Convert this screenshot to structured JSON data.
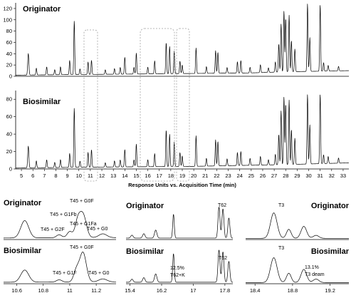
{
  "chart_data": [
    {
      "type": "line",
      "title": "Originator",
      "xlabel": "",
      "ylabel": "",
      "xlim": [
        4.5,
        33.5
      ],
      "ylim": [
        0,
        130
      ],
      "yticks": [
        0,
        20,
        40,
        60,
        80,
        100,
        120
      ],
      "baseline": [
        [
          4.5,
          2
        ],
        [
          9,
          3
        ],
        [
          15,
          4
        ],
        [
          20,
          5
        ],
        [
          25,
          6
        ],
        [
          28,
          8
        ],
        [
          31,
          9
        ],
        [
          33.5,
          10
        ]
      ],
      "peaks": [
        [
          5.6,
          38,
          0.05
        ],
        [
          6.3,
          12,
          0.04
        ],
        [
          7.2,
          14,
          0.04
        ],
        [
          7.9,
          9,
          0.04
        ],
        [
          8.4,
          14,
          0.04
        ],
        [
          9.2,
          25,
          0.04
        ],
        [
          9.6,
          95,
          0.04
        ],
        [
          10.1,
          10,
          0.04
        ],
        [
          10.8,
          22,
          0.04
        ],
        [
          11.1,
          25,
          0.04
        ],
        [
          12.3,
          8,
          0.04
        ],
        [
          13.1,
          10,
          0.04
        ],
        [
          13.6,
          12,
          0.04
        ],
        [
          14.0,
          30,
          0.04
        ],
        [
          14.8,
          12,
          0.04
        ],
        [
          15.0,
          37,
          0.04
        ],
        [
          16.0,
          12,
          0.04
        ],
        [
          16.6,
          23,
          0.04
        ],
        [
          17.6,
          55,
          0.04
        ],
        [
          17.9,
          48,
          0.04
        ],
        [
          18.3,
          40,
          0.04
        ],
        [
          18.8,
          22,
          0.04
        ],
        [
          19.0,
          15,
          0.04
        ],
        [
          20.2,
          45,
          0.04
        ],
        [
          21.1,
          12,
          0.04
        ],
        [
          21.9,
          40,
          0.04
        ],
        [
          22.1,
          37,
          0.04
        ],
        [
          22.9,
          10,
          0.04
        ],
        [
          23.8,
          20,
          0.04
        ],
        [
          24.1,
          22,
          0.04
        ],
        [
          24.9,
          10,
          0.04
        ],
        [
          25.8,
          14,
          0.04
        ],
        [
          26.5,
          8,
          0.04
        ],
        [
          27.1,
          18,
          0.04
        ],
        [
          27.4,
          50,
          0.04
        ],
        [
          27.6,
          85,
          0.04
        ],
        [
          27.85,
          108,
          0.04
        ],
        [
          28.0,
          95,
          0.04
        ],
        [
          28.3,
          100,
          0.04
        ],
        [
          28.5,
          55,
          0.04
        ],
        [
          28.8,
          40,
          0.04
        ],
        [
          29.9,
          120,
          0.04
        ],
        [
          30.1,
          60,
          0.04
        ],
        [
          31.0,
          118,
          0.04
        ],
        [
          31.3,
          15,
          0.04
        ],
        [
          31.7,
          10,
          0.04
        ],
        [
          32.6,
          8,
          0.04
        ]
      ]
    },
    {
      "type": "line",
      "title": "Biosimilar",
      "xlabel": "Response Units vs. Acquisition Time (min)",
      "ylabel": "",
      "xlim": [
        4.5,
        33.5
      ],
      "ylim": [
        0,
        90
      ],
      "yticks": [
        0,
        20,
        40,
        60,
        80
      ],
      "xticks": [
        5,
        6,
        7,
        8,
        9,
        10,
        11,
        12,
        13,
        14,
        15,
        16,
        17,
        18,
        19,
        20,
        21,
        22,
        23,
        24,
        25,
        26,
        27,
        28,
        29,
        30,
        31,
        32,
        33
      ],
      "baseline": [
        [
          4.5,
          1
        ],
        [
          10,
          2
        ],
        [
          20,
          3
        ],
        [
          28,
          5
        ],
        [
          33.5,
          7
        ]
      ],
      "peaks": [
        [
          5.6,
          25,
          0.05
        ],
        [
          6.3,
          8,
          0.04
        ],
        [
          7.2,
          9,
          0.04
        ],
        [
          7.9,
          6,
          0.04
        ],
        [
          8.4,
          9,
          0.04
        ],
        [
          9.2,
          16,
          0.04
        ],
        [
          9.6,
          68,
          0.04
        ],
        [
          10.1,
          7,
          0.04
        ],
        [
          10.8,
          17,
          0.04
        ],
        [
          11.1,
          20,
          0.04
        ],
        [
          12.3,
          5,
          0.04
        ],
        [
          13.1,
          7,
          0.04
        ],
        [
          13.6,
          8,
          0.04
        ],
        [
          14.0,
          20,
          0.04
        ],
        [
          14.8,
          8,
          0.04
        ],
        [
          15.0,
          26,
          0.04
        ],
        [
          16.0,
          8,
          0.04
        ],
        [
          16.6,
          15,
          0.04
        ],
        [
          17.6,
          42,
          0.04
        ],
        [
          17.9,
          37,
          0.04
        ],
        [
          18.3,
          28,
          0.04
        ],
        [
          18.8,
          16,
          0.04
        ],
        [
          19.0,
          12,
          0.04
        ],
        [
          20.2,
          35,
          0.04
        ],
        [
          21.1,
          9,
          0.04
        ],
        [
          21.9,
          30,
          0.04
        ],
        [
          22.1,
          28,
          0.04
        ],
        [
          22.9,
          8,
          0.04
        ],
        [
          23.8,
          15,
          0.04
        ],
        [
          24.1,
          16,
          0.04
        ],
        [
          24.9,
          8,
          0.04
        ],
        [
          25.8,
          10,
          0.04
        ],
        [
          26.5,
          6,
          0.04
        ],
        [
          27.1,
          12,
          0.04
        ],
        [
          27.4,
          35,
          0.04
        ],
        [
          27.6,
          62,
          0.04
        ],
        [
          27.85,
          78,
          0.04
        ],
        [
          28.0,
          70,
          0.04
        ],
        [
          28.3,
          74,
          0.04
        ],
        [
          28.5,
          40,
          0.04
        ],
        [
          28.8,
          30,
          0.04
        ],
        [
          29.9,
          80,
          0.04
        ],
        [
          30.1,
          45,
          0.04
        ],
        [
          31.0,
          80,
          0.04
        ],
        [
          31.3,
          10,
          0.04
        ],
        [
          31.7,
          8,
          0.04
        ],
        [
          32.6,
          6,
          0.04
        ]
      ]
    },
    {
      "type": "line",
      "title": "Originator",
      "xlim": [
        10.5,
        11.35
      ],
      "ylim": [
        0,
        100
      ],
      "baseline": [
        [
          10.5,
          4
        ],
        [
          11.35,
          5
        ]
      ],
      "peaks": [
        [
          10.66,
          45,
          0.03
        ],
        [
          10.92,
          8,
          0.02
        ],
        [
          11.0,
          16,
          0.02
        ],
        [
          11.06,
          40,
          0.02
        ],
        [
          11.1,
          60,
          0.025
        ],
        [
          11.25,
          10,
          0.03
        ]
      ],
      "annotations": [
        "T45 + G0F",
        "T45 + G1Fb",
        "T45 + G1Fa",
        "T45 + G2F",
        "T45 + G0"
      ]
    },
    {
      "type": "line",
      "title": "Biosimilar",
      "xlim": [
        10.5,
        11.35
      ],
      "ylim": [
        0,
        100
      ],
      "xticks": [
        10.6,
        10.8,
        11,
        11.2
      ],
      "baseline": [
        [
          10.5,
          4
        ],
        [
          11.35,
          5
        ]
      ],
      "peaks": [
        [
          10.66,
          32,
          0.03
        ],
        [
          10.92,
          6,
          0.02
        ],
        [
          11.05,
          30,
          0.02
        ],
        [
          11.1,
          78,
          0.025
        ],
        [
          11.25,
          8,
          0.03
        ]
      ],
      "annotations": [
        "T45 + G0F",
        "T45 + G1F",
        "T45 + G0"
      ]
    },
    {
      "type": "line",
      "title": "Originator",
      "xlim": [
        15.3,
        18.0
      ],
      "ylim": [
        0,
        100
      ],
      "baseline": [
        [
          15.3,
          4
        ],
        [
          18.0,
          4
        ]
      ],
      "peaks": [
        [
          15.45,
          8,
          0.03
        ],
        [
          15.75,
          12,
          0.03
        ],
        [
          16.05,
          22,
          0.03
        ],
        [
          16.5,
          65,
          0.02
        ],
        [
          17.65,
          85,
          0.025
        ],
        [
          17.75,
          80,
          0.025
        ],
        [
          17.9,
          55,
          0.025
        ]
      ],
      "annotations": [
        "T62"
      ]
    },
    {
      "type": "line",
      "title": "Biosimilar",
      "xlim": [
        15.3,
        18.0
      ],
      "ylim": [
        0,
        100
      ],
      "xticks": [
        15.4,
        16.2,
        17,
        17.8
      ],
      "baseline": [
        [
          15.3,
          4
        ],
        [
          18.0,
          4
        ]
      ],
      "peaks": [
        [
          15.45,
          8,
          0.03
        ],
        [
          15.75,
          12,
          0.03
        ],
        [
          16.05,
          22,
          0.03
        ],
        [
          16.5,
          75,
          0.02
        ],
        [
          17.65,
          85,
          0.025
        ],
        [
          17.75,
          80,
          0.025
        ],
        [
          17.9,
          55,
          0.025
        ]
      ],
      "annotations": [
        "12.5%",
        "T62+K",
        "T62"
      ]
    },
    {
      "type": "line",
      "title": "Originator",
      "xlim": [
        18.3,
        19.4
      ],
      "ylim": [
        0,
        100
      ],
      "baseline": [
        [
          18.3,
          4
        ],
        [
          19.4,
          4
        ]
      ],
      "peaks": [
        [
          18.6,
          85,
          0.035
        ],
        [
          18.76,
          30,
          0.025
        ],
        [
          18.92,
          40,
          0.03
        ],
        [
          19.05,
          10,
          0.03
        ]
      ],
      "annotations": [
        "T3"
      ]
    },
    {
      "type": "line",
      "title": "Biosimilar",
      "xlim": [
        18.3,
        19.4
      ],
      "ylim": [
        0,
        100
      ],
      "xticks": [
        18.4,
        18.8,
        19.2
      ],
      "baseline": [
        [
          18.3,
          4
        ],
        [
          19.4,
          4
        ]
      ],
      "peaks": [
        [
          18.6,
          85,
          0.035
        ],
        [
          18.76,
          32,
          0.025
        ],
        [
          18.92,
          45,
          0.03
        ],
        [
          19.05,
          12,
          0.03
        ]
      ],
      "annotations": [
        "T3",
        "13.1%",
        "T3 deam"
      ]
    }
  ]
}
